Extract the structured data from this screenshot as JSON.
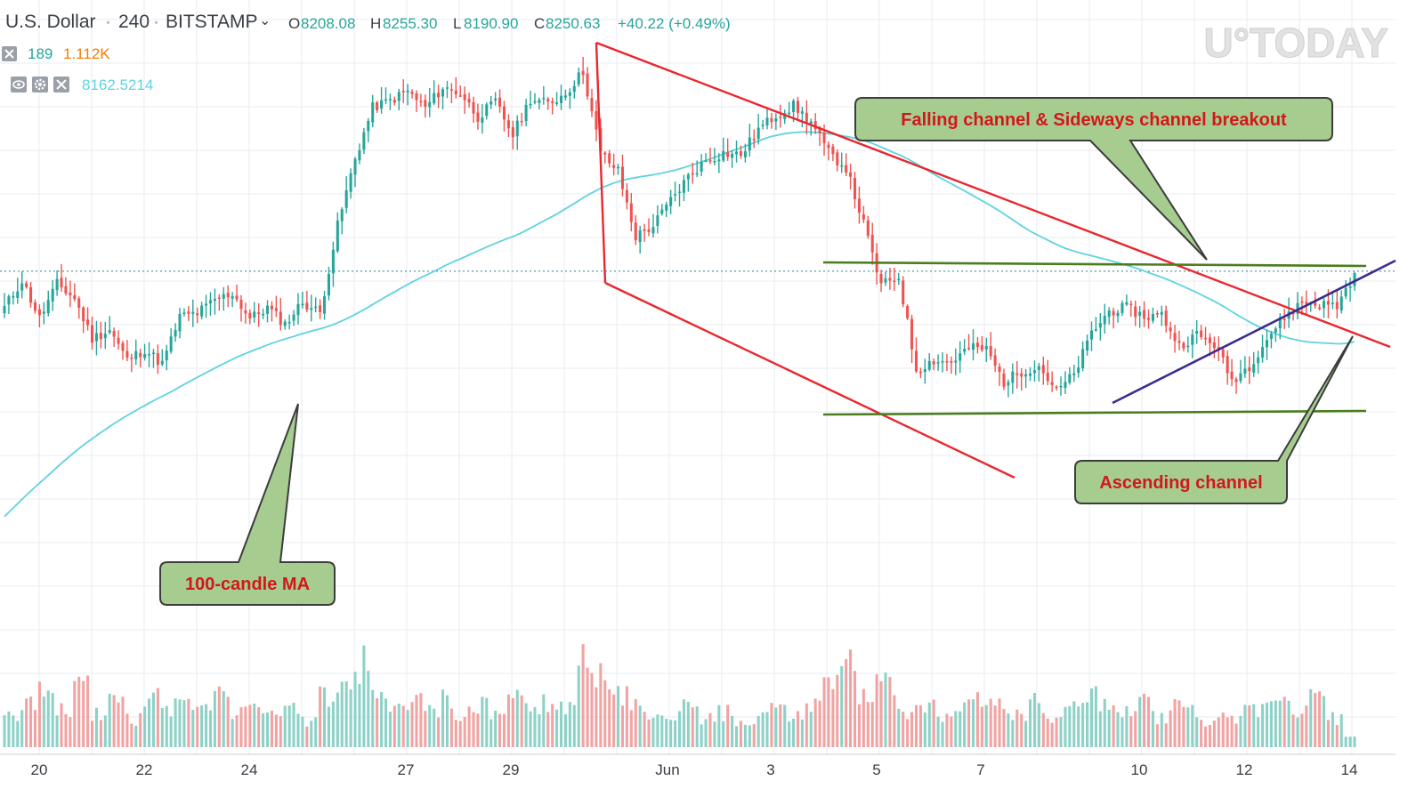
{
  "header": {
    "symbol": "U.S. Dollar",
    "interval": "240",
    "exchange": "BITSTAMP",
    "dropdown_glyph": "⌄",
    "open_label": "O",
    "open_value": "8208.08",
    "high_label": "H",
    "high_value": "8255.30",
    "low_label": "L",
    "low_value": "8190.90",
    "close_label": "C",
    "close_value": "8250.63",
    "change": "+40.22 (+0.49%)",
    "volume_count": "189",
    "volume_value": "1.112K",
    "ma_value": "8162.5214"
  },
  "watermark": "U°TODAY",
  "annotations": {
    "breakout": "Falling channel & Sideways channel breakout",
    "ascending": "Ascending channel",
    "ma": "100-candle MA"
  },
  "colors": {
    "up": "#26a69a",
    "down": "#ef5350",
    "up_volume": "#8dd1c7",
    "down_volume": "#f0a3a2",
    "ma": "#5ed3df",
    "trend_red": "#e8282f",
    "trend_green": "#4a7d1e",
    "trend_purple": "#3c2c8e",
    "callout_fill": "#a6cc8f",
    "callout_text": "#d2171c",
    "grid": "#e7ebf1"
  },
  "icons": [
    "close-icon",
    "eye-icon",
    "gear-icon",
    "close-icon"
  ],
  "chart_data": {
    "type": "candlestick",
    "x_tick_labels": [
      "20",
      "22",
      "24",
      "27",
      "29",
      "Jun",
      "3",
      "5",
      "7",
      "10",
      "12",
      "14"
    ],
    "ohlc_path": [
      8050,
      8200,
      7990,
      8180,
      8100,
      7880,
      7930,
      7760,
      7820,
      7740,
      8000,
      8020,
      8090,
      8130,
      7990,
      8050,
      7960,
      8080,
      8020,
      8500,
      8870,
      9150,
      9190,
      9240,
      9150,
      9260,
      9230,
      9100,
      9180,
      9000,
      9200,
      9170,
      9230,
      9350,
      8900,
      8800,
      8440,
      8500,
      8640,
      8770,
      8860,
      8900,
      8890,
      9030,
      9110,
      9160,
      9070,
      8900,
      8820,
      8510,
      8170,
      8220,
      7710,
      7760,
      7750,
      7830,
      7820,
      7640,
      7700,
      7730,
      7590,
      7680,
      7910,
      8030,
      8050,
      8000,
      8010,
      7840,
      7900,
      7850,
      7650,
      7730,
      7880,
      8000,
      8080,
      8070,
      8060,
      8240
    ],
    "volume_path": [
      30,
      42,
      55,
      38,
      60,
      35,
      45,
      28,
      52,
      40,
      48,
      36,
      55,
      34,
      38,
      30,
      40,
      28,
      50,
      58,
      85,
      55,
      40,
      45,
      38,
      48,
      35,
      42,
      30,
      50,
      40,
      45,
      38,
      95,
      70,
      50,
      40,
      35,
      30,
      42,
      28,
      35,
      25,
      30,
      38,
      30,
      45,
      60,
      80,
      55,
      70,
      45,
      35,
      40,
      30,
      45,
      55,
      40,
      35,
      45,
      30,
      38,
      50,
      40,
      35,
      45,
      30,
      40,
      35,
      28,
      30,
      42,
      38,
      45,
      35,
      48,
      30,
      10
    ],
    "price_line": 8250.63
  }
}
